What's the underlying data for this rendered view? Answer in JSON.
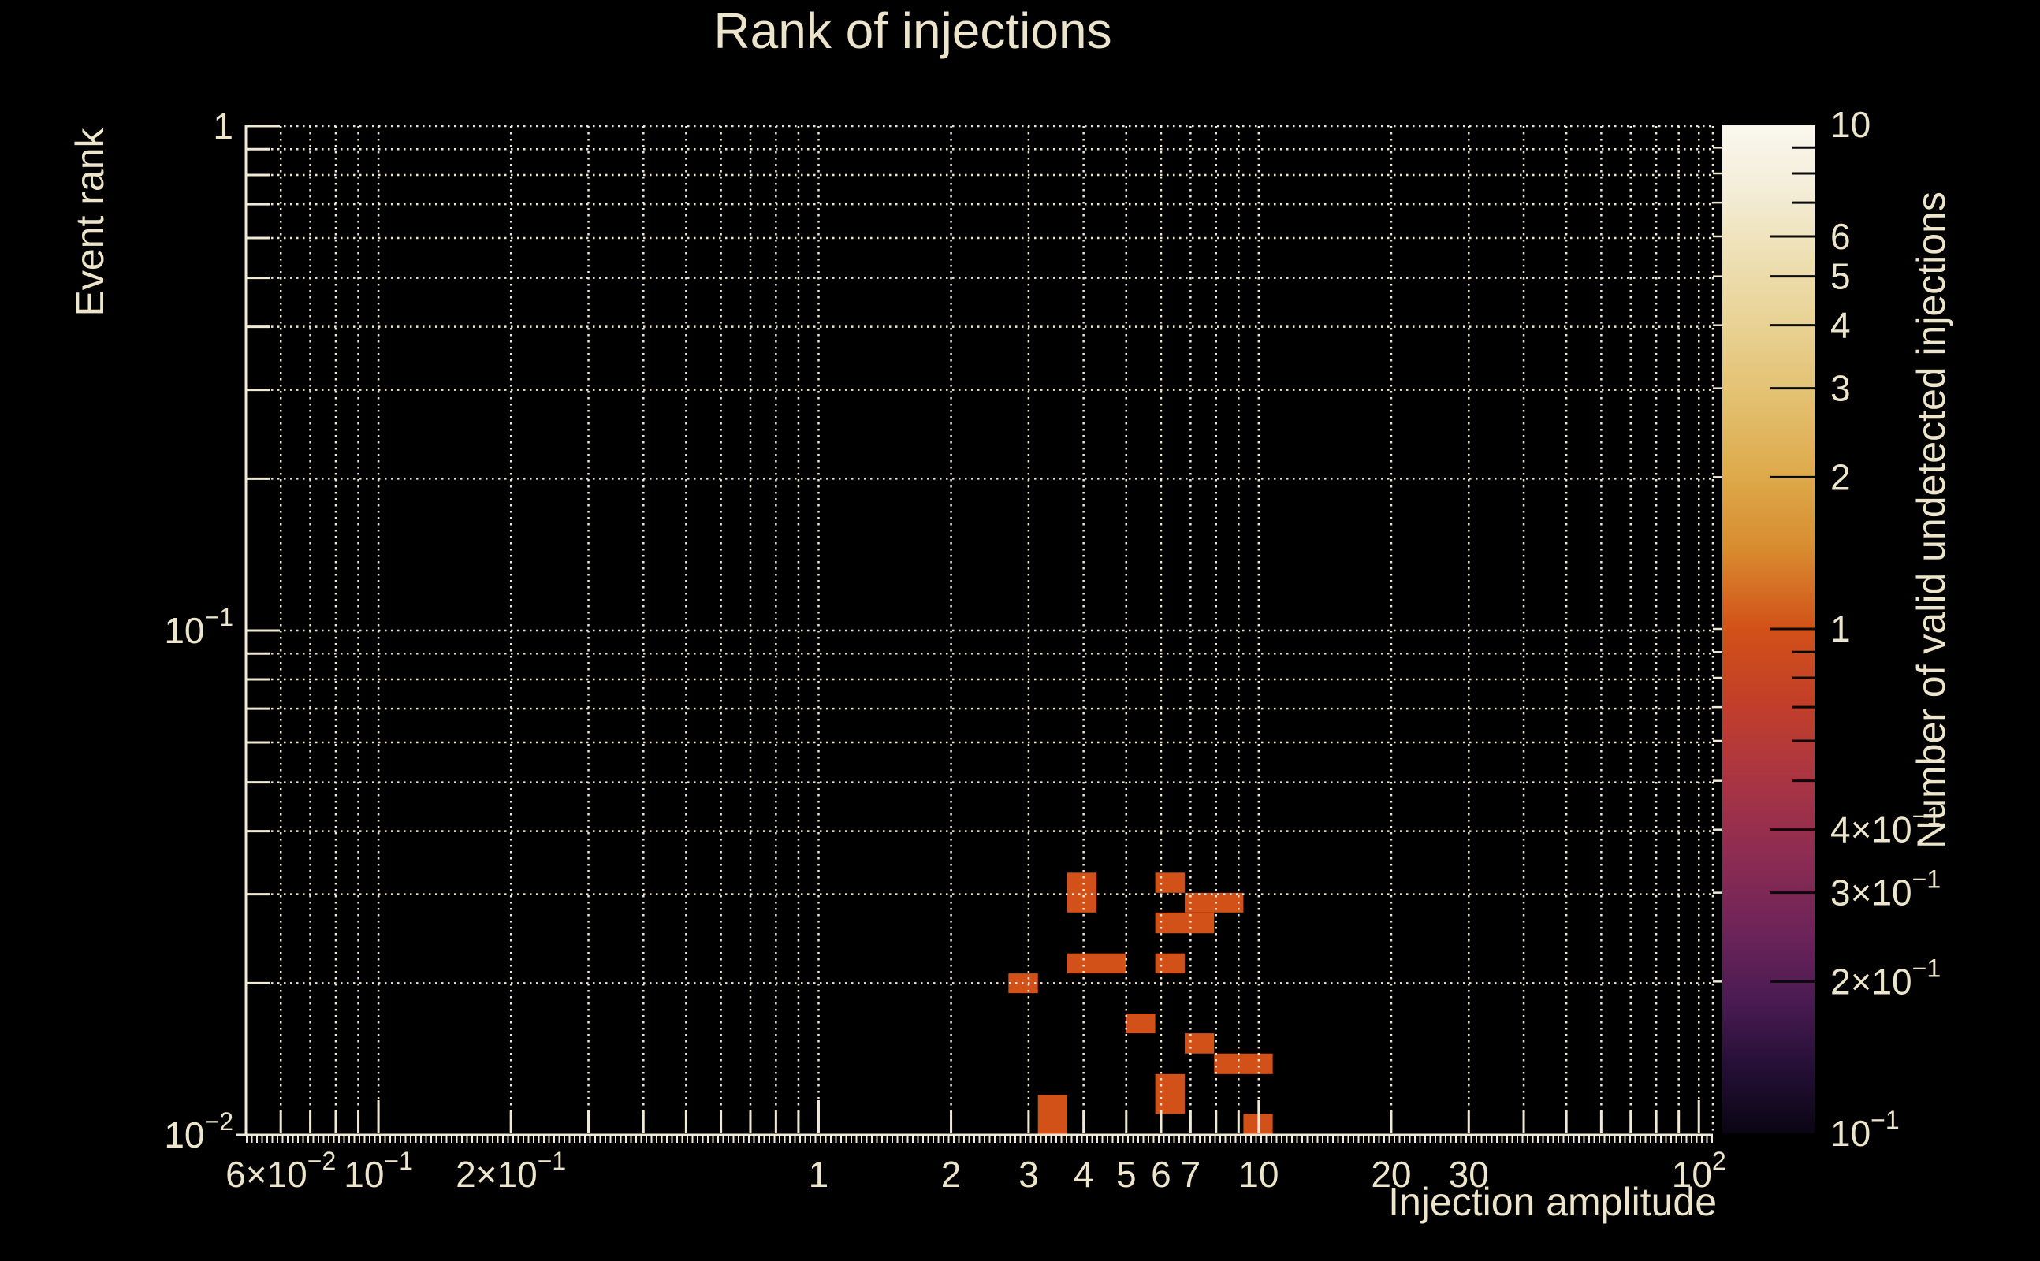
{
  "title": "Rank of injections",
  "colors": {
    "background": "#000000",
    "text": "#ece4cb",
    "grid": "#f0e9d4",
    "spine": "#f0e9d4",
    "bin_fill": "#d25118",
    "colorbar_tick": "#0a0a0a"
  },
  "chart_data": {
    "type": "heatmap",
    "title": "Rank of injections",
    "xlabel": "Injection amplitude",
    "ylabel": "Event rank",
    "colorbar_label": "Number of valid undetected injections",
    "xscale": "log",
    "yscale": "log",
    "xlim": [
      0.05,
      107.6
    ],
    "ylim": [
      0.01,
      1
    ],
    "grid": true,
    "x_ticks": [
      {
        "value": 0.06,
        "label": "6×10^−2"
      },
      {
        "value": 0.1,
        "label": "10^−1"
      },
      {
        "value": 0.2,
        "label": "2×10^−1"
      },
      {
        "value": 1,
        "label": "1"
      },
      {
        "value": 2,
        "label": "2"
      },
      {
        "value": 3,
        "label": "3"
      },
      {
        "value": 4,
        "label": "4"
      },
      {
        "value": 5,
        "label": "5"
      },
      {
        "value": 6,
        "label": "6"
      },
      {
        "value": 7,
        "label": "7"
      },
      {
        "value": 10,
        "label": "10"
      },
      {
        "value": 20,
        "label": "20"
      },
      {
        "value": 30,
        "label": "30"
      },
      {
        "value": 100,
        "label": "10^2"
      }
    ],
    "y_ticks": [
      {
        "value": 1,
        "label": "1"
      },
      {
        "value": 0.1,
        "label": "10^−1"
      },
      {
        "value": 0.01,
        "label": "10^−2"
      }
    ],
    "x_gridlines": [
      0.06,
      0.07,
      0.08,
      0.09,
      0.1,
      0.2,
      0.3,
      0.4,
      0.5,
      0.6,
      0.7,
      0.8,
      0.9,
      1,
      2,
      3,
      4,
      5,
      6,
      7,
      8,
      9,
      10,
      20,
      30,
      40,
      50,
      60,
      70,
      80,
      90,
      100
    ],
    "y_gridlines": [
      1,
      0.9,
      0.8,
      0.7,
      0.6,
      0.5,
      0.4,
      0.3,
      0.2,
      0.1,
      0.09,
      0.08,
      0.07,
      0.06,
      0.05,
      0.04,
      0.03,
      0.02
    ],
    "x_major": [
      0.1,
      1,
      10,
      100
    ],
    "y_major": [
      1,
      0.1,
      0.01
    ],
    "bins": [
      {
        "x": [
          2.7,
          3.15
        ],
        "y": [
          0.0191,
          0.0209
        ],
        "value": 1
      },
      {
        "x": [
          3.67,
          4.28
        ],
        "y": [
          0.0276,
          0.0331
        ],
        "value": 1
      },
      {
        "x": [
          3.67,
          4.99
        ],
        "y": [
          0.0209,
          0.0229
        ],
        "value": 1
      },
      {
        "x": [
          5.82,
          6.79
        ],
        "y": [
          0.0302,
          0.0331
        ],
        "value": 1
      },
      {
        "x": [
          6.79,
          9.23
        ],
        "y": [
          0.0276,
          0.0302
        ],
        "value": 1
      },
      {
        "x": [
          5.82,
          7.92
        ],
        "y": [
          0.0251,
          0.0276
        ],
        "value": 1
      },
      {
        "x": [
          5.82,
          6.79
        ],
        "y": [
          0.0209,
          0.0229
        ],
        "value": 1
      },
      {
        "x": [
          4.99,
          5.82
        ],
        "y": [
          0.0159,
          0.0174
        ],
        "value": 1
      },
      {
        "x": [
          6.79,
          7.92
        ],
        "y": [
          0.0145,
          0.0159
        ],
        "value": 1
      },
      {
        "x": [
          7.92,
          10.76
        ],
        "y": [
          0.0132,
          0.0145
        ],
        "value": 1
      },
      {
        "x": [
          5.82,
          6.79
        ],
        "y": [
          0.011,
          0.0132
        ],
        "value": 1
      },
      {
        "x": [
          3.15,
          3.67
        ],
        "y": [
          0.01,
          0.012
        ],
        "value": 1
      },
      {
        "x": [
          9.23,
          10.76
        ],
        "y": [
          0.01,
          0.011
        ],
        "value": 1
      }
    ],
    "colorbar": {
      "scale": "log",
      "lim": [
        0.1,
        10
      ],
      "ticks": [
        {
          "value": 10,
          "label": "10"
        },
        {
          "value": 6,
          "label": "6"
        },
        {
          "value": 5,
          "label": "5"
        },
        {
          "value": 4,
          "label": "4"
        },
        {
          "value": 3,
          "label": "3"
        },
        {
          "value": 2,
          "label": "2"
        },
        {
          "value": 1,
          "label": "1"
        },
        {
          "value": 0.4,
          "label": "4×10^−1"
        },
        {
          "value": 0.3,
          "label": "3×10^−1"
        },
        {
          "value": 0.2,
          "label": "2×10^−1"
        },
        {
          "value": 0.1,
          "label": "10^−1"
        }
      ],
      "minor_ticks": [
        9,
        8,
        7,
        0.9,
        0.8,
        0.7,
        0.6,
        0.5
      ],
      "gradient_stops": [
        [
          0.0,
          "#faf7ee"
        ],
        [
          0.06,
          "#f4eeda"
        ],
        [
          0.13,
          "#eee0b4"
        ],
        [
          0.2,
          "#e8d193"
        ],
        [
          0.27,
          "#e3c170"
        ],
        [
          0.35,
          "#dda94a"
        ],
        [
          0.42,
          "#d88c30"
        ],
        [
          0.5,
          "#d25118"
        ],
        [
          0.57,
          "#c33f28"
        ],
        [
          0.64,
          "#ad3640"
        ],
        [
          0.72,
          "#8f2c52"
        ],
        [
          0.8,
          "#6d2459"
        ],
        [
          0.87,
          "#491b52"
        ],
        [
          0.93,
          "#271038"
        ],
        [
          1.0,
          "#0a0514"
        ]
      ]
    }
  }
}
